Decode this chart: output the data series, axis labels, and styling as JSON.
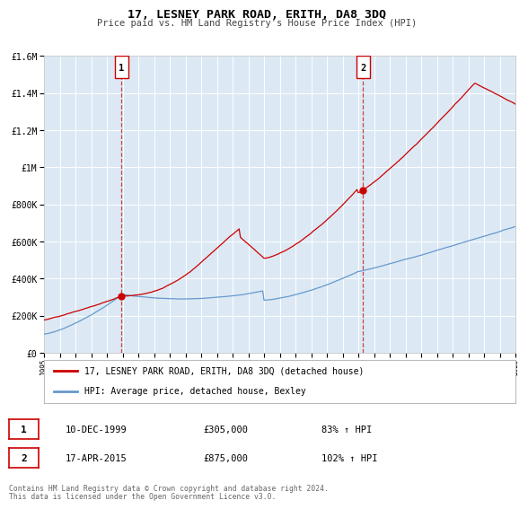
{
  "title": "17, LESNEY PARK ROAD, ERITH, DA8 3DQ",
  "subtitle": "Price paid vs. HM Land Registry's House Price Index (HPI)",
  "background_color": "#ffffff",
  "plot_bg_color": "#dce9f5",
  "grid_color": "#ffffff",
  "x_start_year": 1995,
  "x_end_year": 2025,
  "y_min": 0,
  "y_max": 1600000,
  "y_ticks": [
    0,
    200000,
    400000,
    600000,
    800000,
    1000000,
    1200000,
    1400000,
    1600000
  ],
  "y_tick_labels": [
    "£0",
    "£200K",
    "£400K",
    "£600K",
    "£800K",
    "£1M",
    "£1.2M",
    "£1.4M",
    "£1.6M"
  ],
  "red_line_color": "#cc0000",
  "blue_line_color": "#6699cc",
  "sale1_year": 1999.94,
  "sale1_value": 305000,
  "sale2_year": 2015.29,
  "sale2_value": 875000,
  "vline_color": "#cc4444",
  "marker_color": "#cc0000",
  "label1": "17, LESNEY PARK ROAD, ERITH, DA8 3DQ (detached house)",
  "label2": "HPI: Average price, detached house, Bexley",
  "annotation1_date": "10-DEC-1999",
  "annotation1_price": "£305,000",
  "annotation1_hpi": "83% ↑ HPI",
  "annotation2_date": "17-APR-2015",
  "annotation2_price": "£875,000",
  "annotation2_hpi": "102% ↑ HPI",
  "footnote_line1": "Contains HM Land Registry data © Crown copyright and database right 2024.",
  "footnote_line2": "This data is licensed under the Open Government Licence v3.0."
}
